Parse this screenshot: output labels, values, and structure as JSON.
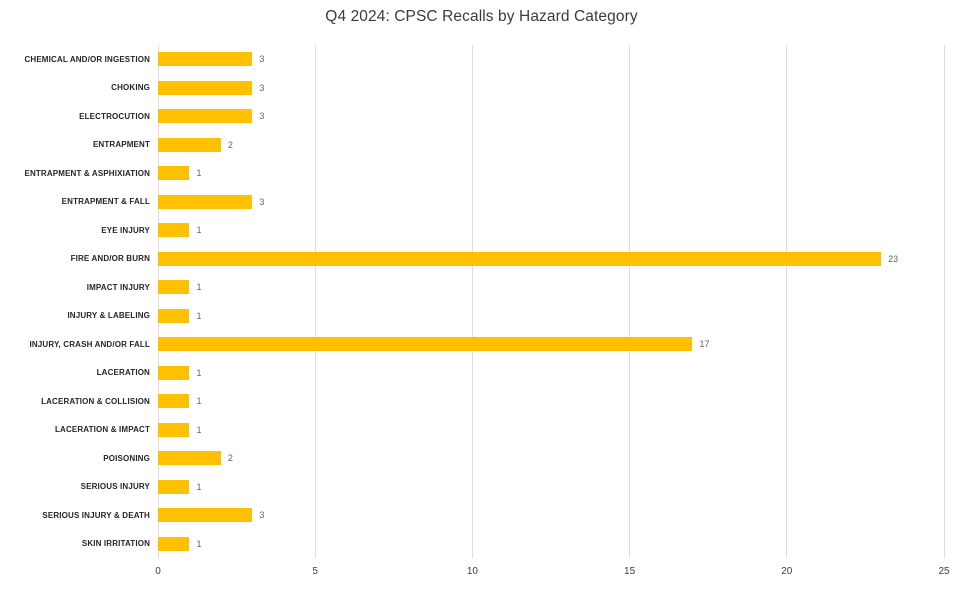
{
  "chart_data": {
    "type": "bar",
    "orientation": "horizontal",
    "title": "Q4 2024: CPSC Recalls by Hazard Category",
    "categories": [
      "CHEMICAL AND/OR INGESTION",
      "CHOKING",
      "ELECTROCUTION",
      "ENTRAPMENT",
      "ENTRAPMENT & ASPHIXIATION",
      "ENTRAPMENT & FALL",
      "EYE INJURY",
      "FIRE AND/OR BURN",
      "IMPACT INJURY",
      "INJURY & LABELING",
      "INJURY, CRASH AND/OR FALL",
      "LACERATION",
      "LACERATION & COLLISION",
      "LACERATION & IMPACT",
      "POISONING",
      "SERIOUS INJURY",
      "SERIOUS INJURY & DEATH",
      "SKIN IRRITATION"
    ],
    "values": [
      3,
      3,
      3,
      2,
      1,
      3,
      1,
      23,
      1,
      1,
      17,
      1,
      1,
      1,
      2,
      1,
      3,
      1
    ],
    "xlabel": "",
    "ylabel": "",
    "xlim": [
      0,
      25
    ],
    "x_ticks": [
      0,
      5,
      10,
      15,
      20,
      25
    ],
    "grid": true,
    "legend": false,
    "data_labels": true,
    "colors": {
      "bar": "#FFC000",
      "data_label_text": "#6E6060",
      "category_label_text": "#262626",
      "tick_label_text": "#3F3F3F",
      "gridline": "#E9D9D9",
      "title_text": "#3B3B3B",
      "background": "#FFFFFF"
    }
  }
}
